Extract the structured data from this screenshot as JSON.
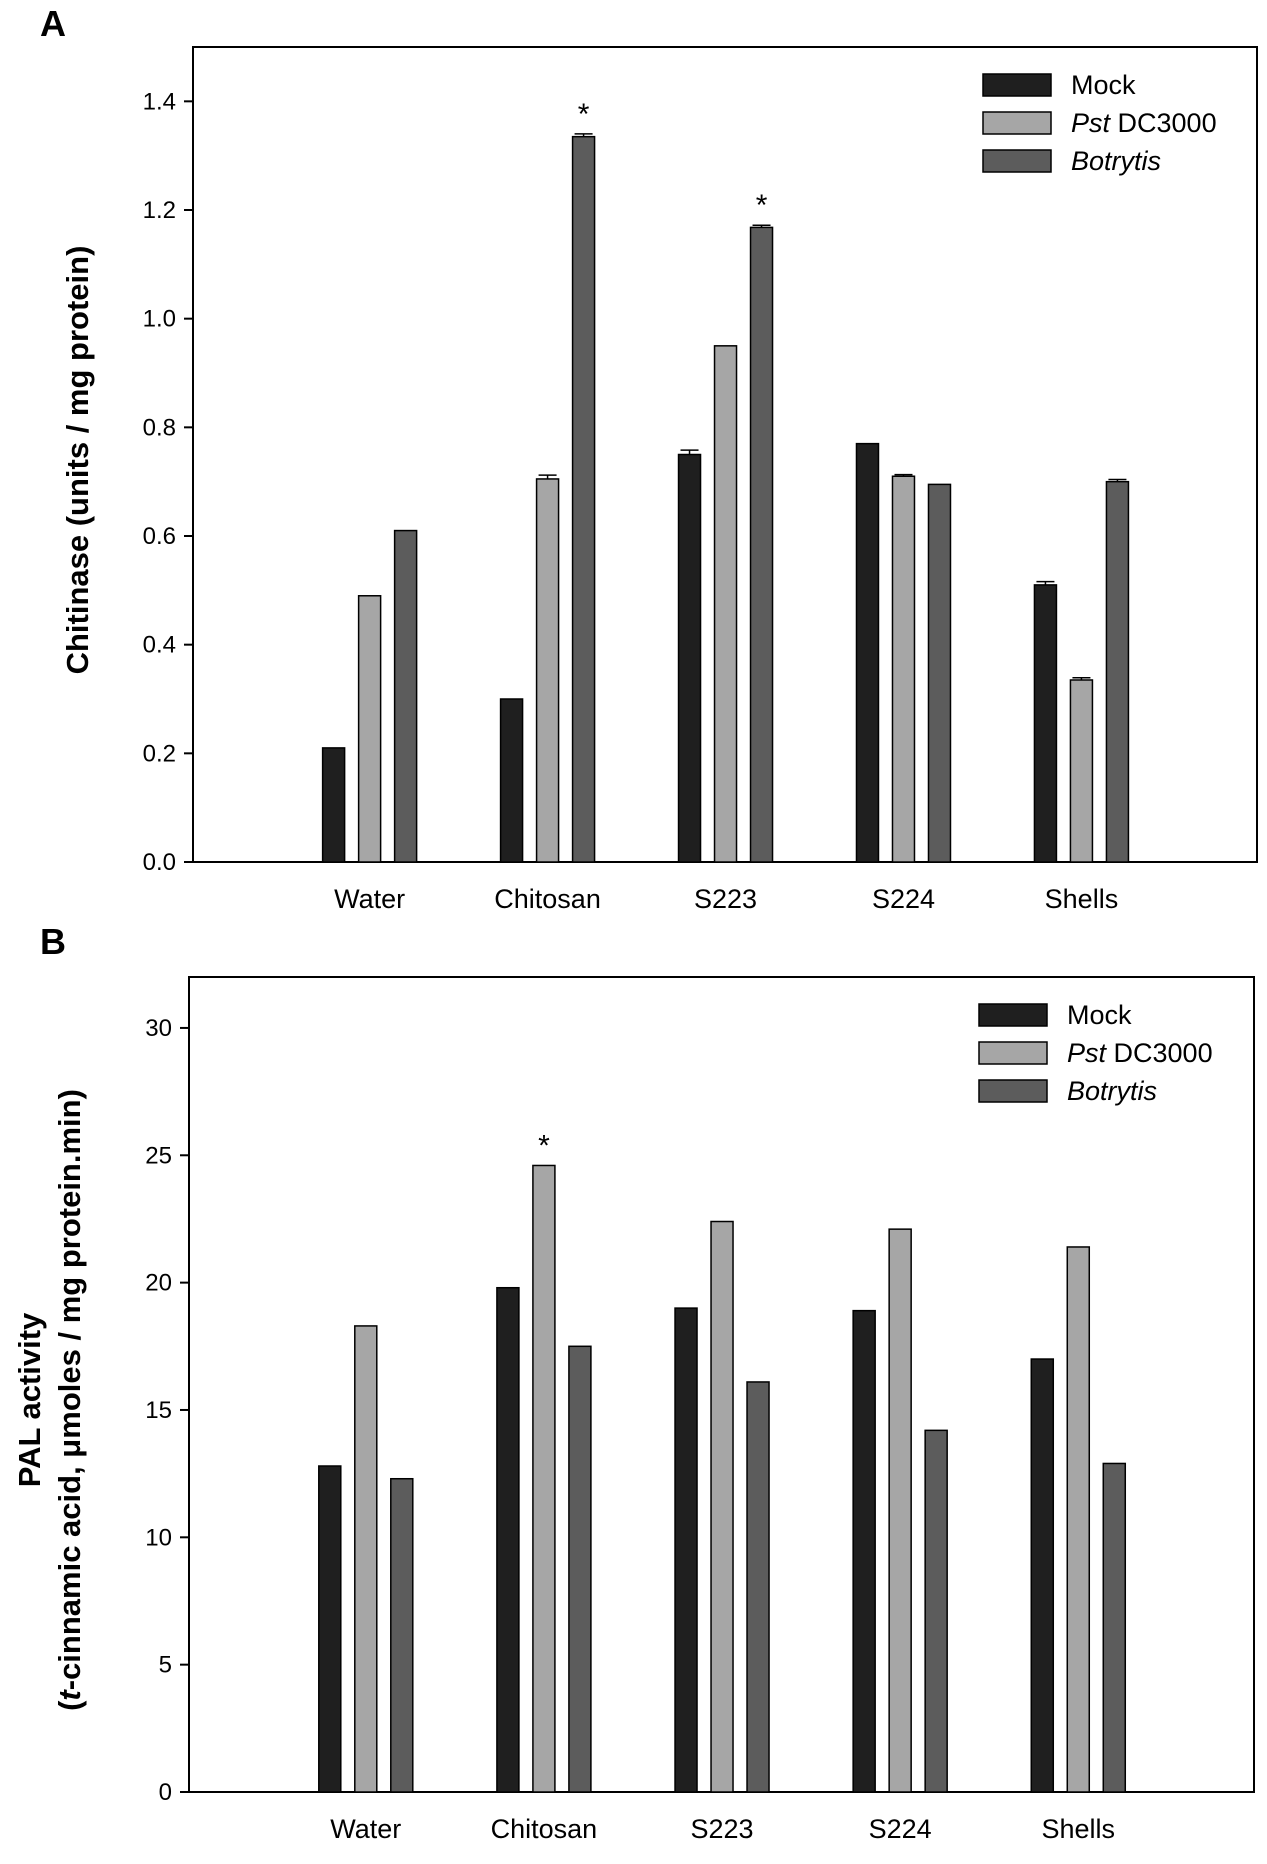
{
  "legend": {
    "series": [
      {
        "prefix": "Mock",
        "prefix_italic": false,
        "suffix": ""
      },
      {
        "prefix": "Pst",
        "prefix_italic": true,
        "suffix": " DC3000"
      },
      {
        "prefix": "Botrytis",
        "prefix_italic": true,
        "suffix": ""
      }
    ]
  },
  "colors": {
    "mock": "#1f1f1f",
    "pst": "#a6a6a6",
    "botrytis": "#5c5c5c",
    "error": "#000000"
  },
  "chart_data": [
    {
      "type": "bar",
      "panel": "A",
      "ylabel": "Chitinase (units / mg protein)",
      "categories": [
        "Water",
        "Chitosan",
        "S223",
        "S224",
        "Shells"
      ],
      "ylim": [
        0,
        1.5
      ],
      "yticks": [
        0.0,
        0.2,
        0.4,
        0.6,
        0.8,
        1.0,
        1.2,
        1.4
      ],
      "ytick_labels": [
        "0.0",
        "0.2",
        "0.4",
        "0.6",
        "0.8",
        "1.0",
        "1.2",
        "1.4"
      ],
      "series": [
        {
          "name": "Mock",
          "values": [
            0.21,
            0.3,
            0.75,
            0.77,
            0.51
          ],
          "errors": [
            0,
            0,
            0.008,
            0,
            0.006
          ]
        },
        {
          "name": "Pst DC3000",
          "values": [
            0.49,
            0.705,
            0.95,
            0.71,
            0.335
          ],
          "errors": [
            0,
            0.007,
            0,
            0.003,
            0.004
          ]
        },
        {
          "name": "Botrytis",
          "values": [
            0.61,
            1.335,
            1.168,
            0.695,
            0.7
          ],
          "errors": [
            0,
            0.005,
            0.004,
            0,
            0.004
          ]
        }
      ],
      "annotations": [
        {
          "category_index": 1,
          "series_index": 2,
          "text": "*"
        },
        {
          "category_index": 2,
          "series_index": 2,
          "text": "*"
        }
      ]
    },
    {
      "type": "bar",
      "panel": "B",
      "ylabel_line1": "PAL activity",
      "ylabel_line2_italic": "t",
      "ylabel_line2_rest": "-cinnamic acid, μmoles / mg protein.min)",
      "ylabel_line2_open": "(",
      "categories": [
        "Water",
        "Chitosan",
        "S223",
        "S224",
        "Shells"
      ],
      "ylim": [
        0,
        32
      ],
      "yticks": [
        0,
        5,
        10,
        15,
        20,
        25,
        30
      ],
      "ytick_labels": [
        "0",
        "5",
        "10",
        "15",
        "20",
        "25",
        "30"
      ],
      "series": [
        {
          "name": "Mock",
          "values": [
            12.8,
            19.8,
            19.0,
            18.9,
            17.0
          ],
          "errors": [
            0,
            0,
            0,
            0,
            0
          ]
        },
        {
          "name": "Pst DC3000",
          "values": [
            18.3,
            24.6,
            22.4,
            22.1,
            21.4
          ],
          "errors": [
            0,
            0,
            0,
            0,
            0
          ]
        },
        {
          "name": "Botrytis",
          "values": [
            12.3,
            17.5,
            16.1,
            14.2,
            12.9
          ],
          "errors": [
            0,
            0,
            0,
            0,
            0
          ]
        }
      ],
      "annotations": [
        {
          "category_index": 1,
          "series_index": 1,
          "text": "*"
        }
      ]
    }
  ]
}
